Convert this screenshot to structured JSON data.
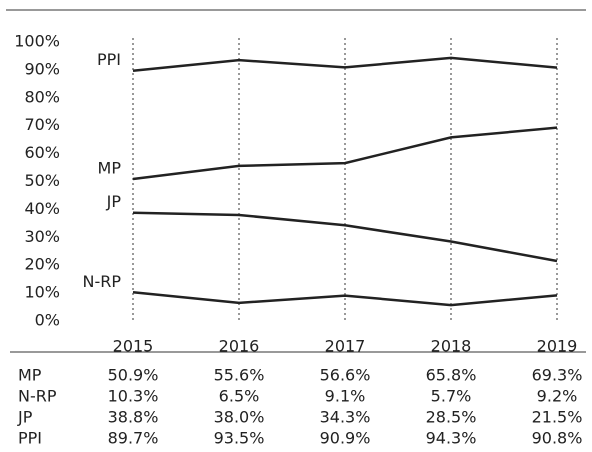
{
  "chart_data": {
    "type": "line",
    "categories": [
      "2015",
      "2016",
      "2017",
      "2018",
      "2019"
    ],
    "series": [
      {
        "name": "MP",
        "color": "#222222",
        "values": [
          50.9,
          55.6,
          56.6,
          65.8,
          69.3
        ],
        "value_labels": [
          "50.9%",
          "55.6%",
          "56.6%",
          "65.8%",
          "69.3%"
        ]
      },
      {
        "name": "N-RP",
        "color": "#222222",
        "values": [
          10.3,
          6.5,
          9.1,
          5.7,
          9.2
        ],
        "value_labels": [
          "10.3%",
          "6.5%",
          "9.1%",
          "5.7%",
          "9.2%"
        ]
      },
      {
        "name": "JP",
        "color": "#222222",
        "values": [
          38.8,
          38.0,
          34.3,
          28.5,
          21.5
        ],
        "value_labels": [
          "38.8%",
          "38.0%",
          "34.3%",
          "28.5%",
          "21.5%"
        ]
      },
      {
        "name": "PPI",
        "color": "#222222",
        "values": [
          89.7,
          93.5,
          90.9,
          94.3,
          90.8
        ],
        "value_labels": [
          "89.7%",
          "93.5%",
          "90.9%",
          "94.3%",
          "90.8%"
        ]
      }
    ],
    "ylim": [
      0,
      100
    ],
    "yticks": [
      {
        "value": 0,
        "label": "0%"
      },
      {
        "value": 10,
        "label": "10%"
      },
      {
        "value": 20,
        "label": "20%"
      },
      {
        "value": 30,
        "label": "30%"
      },
      {
        "value": 40,
        "label": "40%"
      },
      {
        "value": 50,
        "label": "50%"
      },
      {
        "value": 60,
        "label": "60%"
      },
      {
        "value": 70,
        "label": "70%"
      },
      {
        "value": 80,
        "label": "80%"
      },
      {
        "value": 90,
        "label": "90%"
      },
      {
        "value": 100,
        "label": "100%"
      }
    ],
    "grid": true
  }
}
